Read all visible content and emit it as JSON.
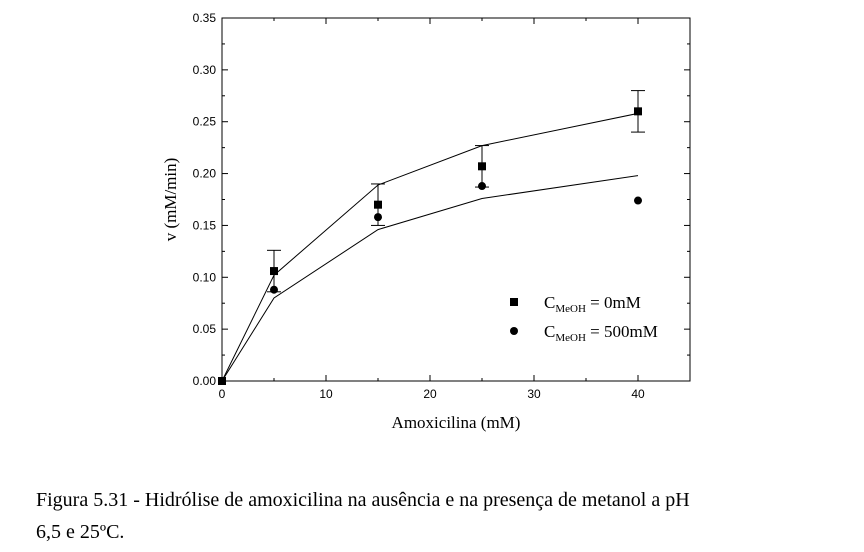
{
  "chart_data": {
    "type": "scatter",
    "title": "",
    "xlabel": "Amoxicilina (mM)",
    "ylabel": "v (mM/min)",
    "xlim": [
      -1,
      44
    ],
    "ylim": [
      0,
      0.35
    ],
    "x_ticks": [
      "0",
      "10",
      "20",
      "30",
      "40"
    ],
    "y_ticks": [
      "0.00",
      "0.05",
      "0.10",
      "0.15",
      "0.20",
      "0.25",
      "0.30",
      "0.35"
    ],
    "grid": false,
    "legend_position": "bottom-right",
    "series": [
      {
        "legend_main": "C",
        "legend_sub": "MeOH",
        "legend_rest": " = 0mM",
        "marker": "square",
        "points": [
          {
            "x": 0,
            "y": 0.0,
            "err": 0.0
          },
          {
            "x": 5,
            "y": 0.106,
            "err": 0.02
          },
          {
            "x": 15,
            "y": 0.17,
            "err": 0.02
          },
          {
            "x": 25,
            "y": 0.207,
            "err": 0.02
          },
          {
            "x": 40,
            "y": 0.26,
            "err": 0.02
          }
        ],
        "fit_line": [
          {
            "x": 0,
            "y": 0.0
          },
          {
            "x": 5,
            "y": 0.102
          },
          {
            "x": 15,
            "y": 0.189
          },
          {
            "x": 25,
            "y": 0.227
          },
          {
            "x": 40,
            "y": 0.258
          }
        ]
      },
      {
        "legend_main": "C",
        "legend_sub": "MeOH",
        "legend_rest": " = 500mM",
        "marker": "circle",
        "points": [
          {
            "x": 0,
            "y": 0.0
          },
          {
            "x": 5,
            "y": 0.088
          },
          {
            "x": 15,
            "y": 0.158
          },
          {
            "x": 25,
            "y": 0.188
          },
          {
            "x": 40,
            "y": 0.174
          }
        ],
        "fit_line": [
          {
            "x": 0,
            "y": 0.0
          },
          {
            "x": 5,
            "y": 0.08
          },
          {
            "x": 15,
            "y": 0.146
          },
          {
            "x": 25,
            "y": 0.176
          },
          {
            "x": 40,
            "y": 0.198
          }
        ]
      }
    ]
  },
  "caption": {
    "line1": "Figura 5.31 - Hidrólise de amoxicilina na ausência e na presença de metanol a pH",
    "line2": "6,5 e 25ºC."
  }
}
